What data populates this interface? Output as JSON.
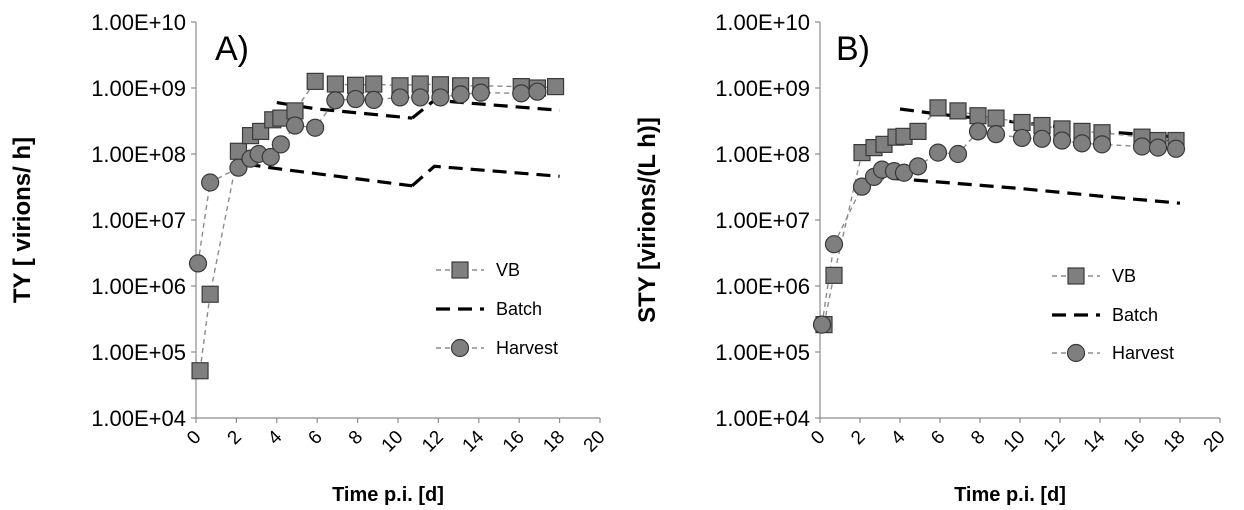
{
  "chart_data": [
    {
      "type": "scatter",
      "panel_label": "A)",
      "xlabel": "Time p.i. [d]",
      "ylabel": "TY [ virions/ h]",
      "yscale": "log",
      "ylim": [
        10000,
        10000000000
      ],
      "xlim": [
        0,
        20
      ],
      "x_ticks": [
        "0",
        "2",
        "4",
        "6",
        "8",
        "10",
        "12",
        "14",
        "16",
        "18",
        "20"
      ],
      "y_ticks": [
        "1.00E+04",
        "1.00E+05",
        "1.00E+06",
        "1.00E+07",
        "1.00E+08",
        "1.00E+09",
        "1.00E+10"
      ],
      "legend_position": "right",
      "series": [
        {
          "name": "VB",
          "marker": "square",
          "color": "#7f7f7f",
          "x": [
            0.2,
            0.7,
            2.1,
            2.7,
            3.2,
            3.8,
            4.2,
            4.9,
            5.9,
            6.9,
            7.9,
            8.8,
            10.1,
            11.1,
            12.1,
            13.1,
            14.1,
            16.1,
            16.9,
            17.8
          ],
          "y": [
            52000,
            750000,
            110000000,
            190000000,
            220000000,
            330000000,
            350000000,
            450000000,
            1260000000,
            1150000000,
            1100000000,
            1150000000,
            1080000000,
            1150000000,
            1120000000,
            1080000000,
            1080000000,
            1050000000,
            1000000000,
            1050000000
          ]
        },
        {
          "name": "Batch",
          "line_style": "dashed",
          "color": "#000000",
          "segments": [
            {
              "x": [
                4.0,
                6.0,
                10.7
              ],
              "y": [
                600000000,
                480000000,
                350000000
              ]
            },
            {
              "x": [
                10.7,
                11.8,
                18.0
              ],
              "y": [
                350000000,
                650000000,
                460000000
              ]
            },
            {
              "x": [
                2.5,
                4.0,
                10.7
              ],
              "y": [
                70000000,
                60000000,
                33000000
              ]
            },
            {
              "x": [
                10.7,
                11.8,
                18.0
              ],
              "y": [
                33000000,
                65000000,
                46000000
              ]
            }
          ]
        },
        {
          "name": "Harvest",
          "marker": "circle",
          "color": "#7f7f7f",
          "x": [
            0.1,
            0.7,
            2.1,
            2.7,
            3.1,
            3.7,
            4.2,
            4.9,
            5.9,
            6.9,
            7.9,
            8.8,
            10.1,
            11.1,
            12.1,
            13.1,
            14.1,
            16.1,
            16.9
          ],
          "y": [
            2200000,
            37000000,
            62000000,
            85000000,
            100000000,
            90000000,
            140000000,
            270000000,
            250000000,
            650000000,
            680000000,
            660000000,
            720000000,
            720000000,
            720000000,
            800000000,
            850000000,
            830000000,
            880000000
          ]
        }
      ]
    },
    {
      "type": "scatter",
      "panel_label": "B)",
      "xlabel": "Time p.i. [d]",
      "ylabel": "STY [virions/(L h)]",
      "yscale": "log",
      "ylim": [
        10000,
        10000000000
      ],
      "xlim": [
        0,
        20
      ],
      "x_ticks": [
        "0",
        "2",
        "4",
        "6",
        "8",
        "10",
        "12",
        "14",
        "16",
        "18",
        "20"
      ],
      "y_ticks": [
        "1.00E+04",
        "1.00E+05",
        "1.00E+06",
        "1.00E+07",
        "1.00E+08",
        "1.00E+09",
        "1.00E+10"
      ],
      "legend_position": "right",
      "series": [
        {
          "name": "VB",
          "marker": "square",
          "color": "#7f7f7f",
          "x": [
            0.2,
            0.7,
            2.1,
            2.7,
            3.2,
            3.8,
            4.2,
            4.9,
            5.9,
            6.9,
            7.9,
            8.8,
            10.1,
            11.1,
            12.1,
            13.1,
            14.1,
            16.1,
            16.9,
            17.8
          ],
          "y": [
            260000,
            1450000,
            105000000,
            125000000,
            140000000,
            180000000,
            185000000,
            220000000,
            500000000,
            450000000,
            380000000,
            350000000,
            300000000,
            270000000,
            240000000,
            220000000,
            210000000,
            180000000,
            160000000,
            160000000
          ]
        },
        {
          "name": "Batch",
          "line_style": "dashed",
          "color": "#000000",
          "segments": [
            {
              "x": [
                4.0,
                6.0,
                10.0,
                14.0,
                18.0
              ],
              "y": [
                480000000,
                400000000,
                300000000,
                220000000,
                180000000
              ]
            },
            {
              "x": [
                2.5,
                4.0,
                10.0,
                14.0,
                18.0
              ],
              "y": [
                45000000,
                42000000,
                30000000,
                23000000,
                18000000
              ]
            }
          ]
        },
        {
          "name": "Harvest",
          "marker": "circle",
          "color": "#7f7f7f",
          "x": [
            0.1,
            0.7,
            2.1,
            2.7,
            3.1,
            3.7,
            4.2,
            4.9,
            5.9,
            6.9,
            7.9,
            8.8,
            10.1,
            11.1,
            12.1,
            13.1,
            14.1,
            16.1,
            16.9,
            17.8
          ],
          "y": [
            260000,
            4300000,
            32000000,
            45000000,
            58000000,
            55000000,
            52000000,
            65000000,
            105000000,
            100000000,
            220000000,
            200000000,
            175000000,
            170000000,
            160000000,
            145000000,
            140000000,
            130000000,
            125000000,
            120000000
          ]
        }
      ]
    }
  ]
}
